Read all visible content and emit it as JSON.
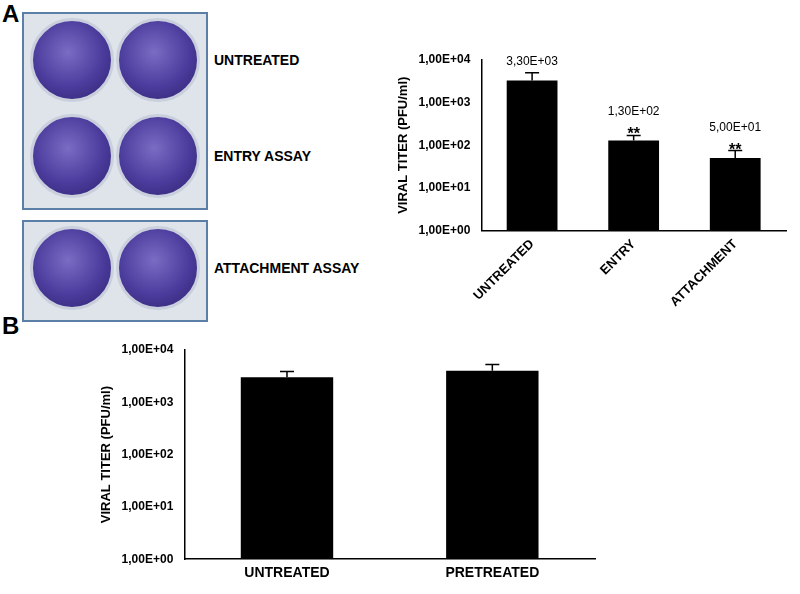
{
  "panel_labels": [
    "A",
    "B"
  ],
  "plate_labels": [
    "UNTREATED",
    "ENTRY ASSAY",
    "ATTACHMENT ASSAY"
  ],
  "chart_data": [
    {
      "type": "bar",
      "y_label": "VIRAL TITER (PFU/ml)",
      "categories": [
        "UNTREATED",
        "ENTRY",
        "ATTACHMENT"
      ],
      "values": [
        3300,
        130,
        50
      ],
      "value_labels": [
        "3,30E+03",
        "1,30E+02",
        "5,00E+01"
      ],
      "errors": [
        1700,
        40,
        25
      ],
      "annotations": [
        {
          "category": "ENTRY",
          "text": "**"
        },
        {
          "category": "ATTACHMENT",
          "text": "**"
        }
      ],
      "color": "#000000",
      "log": "y",
      "ylim": [
        1,
        10000
      ],
      "yticks": [
        {
          "value": 1,
          "label": "1,00E+00"
        },
        {
          "value": 10,
          "label": "1,00E+01"
        },
        {
          "value": 100,
          "label": "1,00E+02"
        },
        {
          "value": 1000,
          "label": "1,00E+03"
        },
        {
          "value": 10000,
          "label": "1,00E+04"
        }
      ],
      "grid": false,
      "data_labels": true
    },
    {
      "type": "bar",
      "y_label": "VIRAL TITER (PFU/ml)",
      "categories": [
        "UNTREATED",
        "PRETREATED"
      ],
      "values": [
        3000,
        4000
      ],
      "errors": [
        900,
        1300
      ],
      "color": "#000000",
      "log": "y",
      "ylim": [
        1,
        10000
      ],
      "yticks": [
        {
          "value": 1,
          "label": "1,00E+00"
        },
        {
          "value": 10,
          "label": "1,00E+01"
        },
        {
          "value": 100,
          "label": "1,00E+02"
        },
        {
          "value": 1000,
          "label": "1,00E+03"
        },
        {
          "value": 10000,
          "label": "1,00E+04"
        }
      ],
      "grid": false,
      "data_labels": false
    }
  ]
}
